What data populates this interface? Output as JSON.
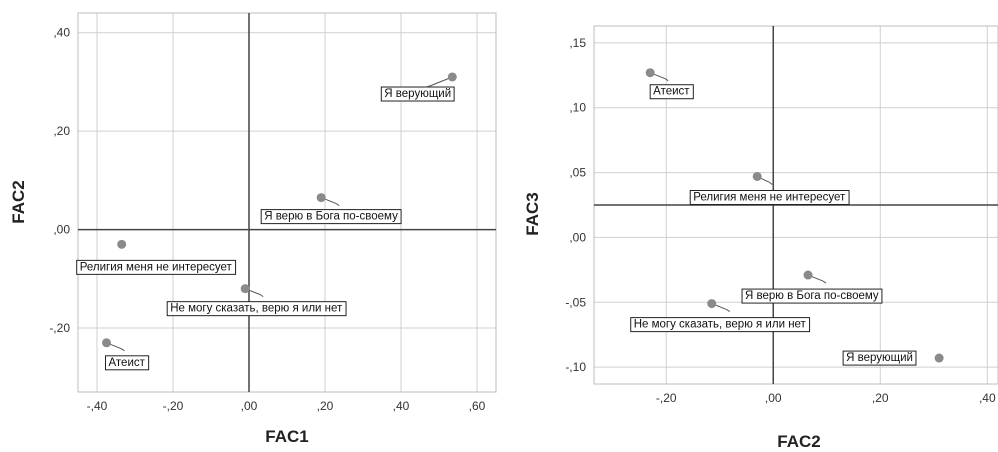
{
  "chart_data": [
    {
      "type": "scatter",
      "xlabel": "FAC1",
      "ylabel": "FAC2",
      "xlim": [
        -0.45,
        0.65
      ],
      "ylim": [
        -0.33,
        0.44
      ],
      "xticks": [
        -0.4,
        -0.2,
        0.0,
        0.2,
        0.4,
        0.6
      ],
      "xtick_labels": [
        "-,40",
        "-,20",
        ",00",
        ",20",
        ",40",
        ",60"
      ],
      "yticks": [
        -0.2,
        0.0,
        0.2,
        0.4
      ],
      "ytick_labels": [
        "-,20",
        ",00",
        ",20",
        ",40"
      ],
      "ref_x": 0.0,
      "ref_y": 0.0,
      "grid": true,
      "points": [
        {
          "label": "Я верующий",
          "x": 0.535,
          "y": 0.31
        },
        {
          "label": "Я верю в Бога по-своему",
          "x": 0.19,
          "y": 0.065
        },
        {
          "label": "Религия меня не интересует",
          "x": -0.335,
          "y": -0.03
        },
        {
          "label": "Не могу сказать, верю я или нет",
          "x": -0.01,
          "y": -0.12
        },
        {
          "label": "Атеист",
          "x": -0.375,
          "y": -0.23
        }
      ]
    },
    {
      "type": "scatter",
      "xlabel": "FAC2",
      "ylabel": "FAC3",
      "xlim": [
        -0.335,
        0.42
      ],
      "ylim": [
        -0.113,
        0.163
      ],
      "xticks": [
        -0.2,
        0.0,
        0.2,
        0.4
      ],
      "xtick_labels": [
        "-,20",
        ",00",
        ",20",
        ",40"
      ],
      "yticks": [
        -0.1,
        -0.05,
        0.0,
        0.05,
        0.1,
        0.15
      ],
      "ytick_labels": [
        "-,10",
        "-,05",
        ",00",
        ",05",
        ",10",
        ",15"
      ],
      "ref_x": 0.0,
      "ref_y": 0.025,
      "grid": true,
      "points": [
        {
          "label": "Атеист",
          "x": -0.23,
          "y": 0.127
        },
        {
          "label": "Религия меня не интересует",
          "x": -0.03,
          "y": 0.047
        },
        {
          "label": "Я верю в Бога по-своему",
          "x": 0.065,
          "y": -0.029
        },
        {
          "label": "Не могу сказать, верю я или нет",
          "x": -0.115,
          "y": -0.051
        },
        {
          "label": "Я верующий",
          "x": 0.31,
          "y": -0.093
        }
      ]
    }
  ]
}
